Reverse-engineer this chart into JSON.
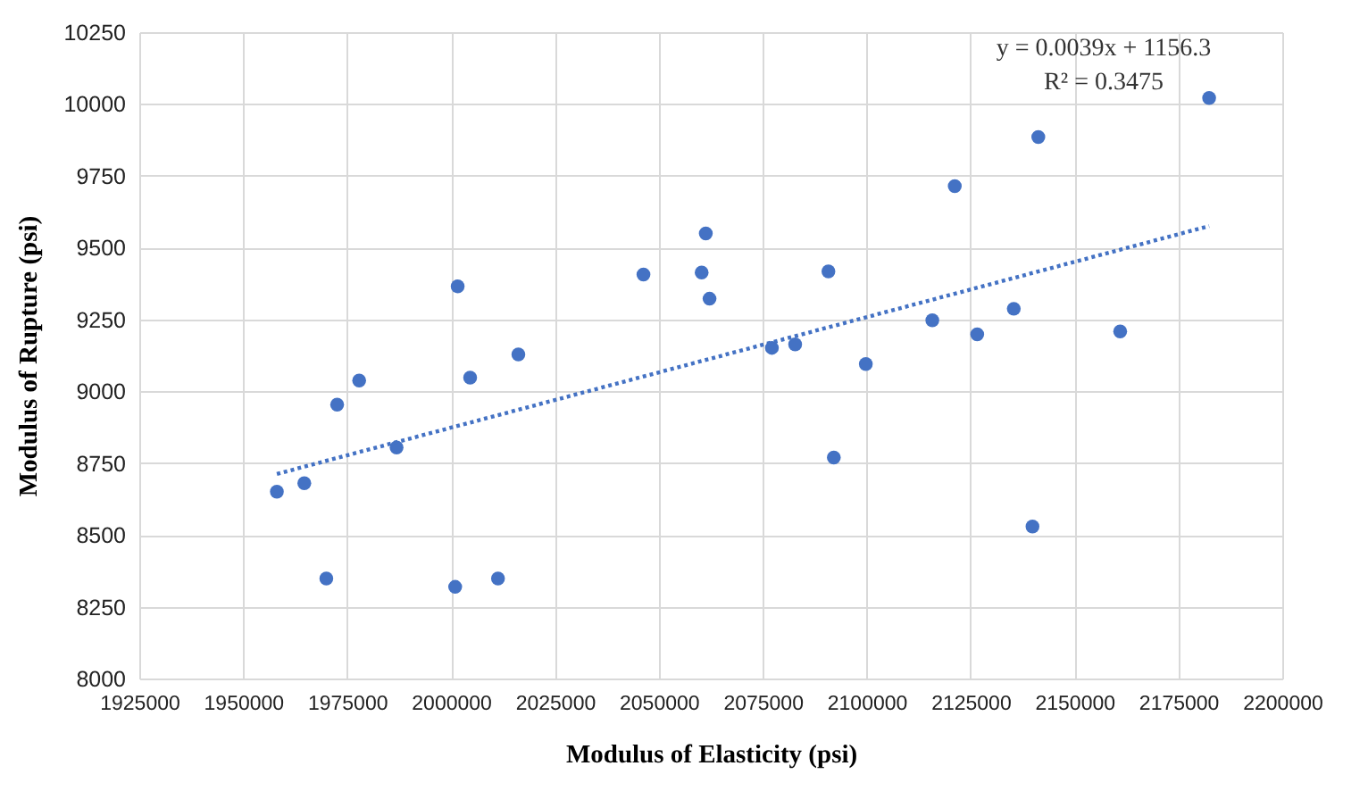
{
  "chart_data": {
    "type": "scatter",
    "xlabel": "Modulus of Elasticity (psi)",
    "ylabel": "Modulus of Rupture (psi)",
    "xlim": [
      1925000,
      2200000
    ],
    "xticks": [
      1925000,
      1950000,
      1975000,
      2000000,
      2025000,
      2050000,
      2075000,
      2100000,
      2125000,
      2150000,
      2175000,
      2200000
    ],
    "ylim": [
      8000,
      10250
    ],
    "yticks": [
      8000,
      8250,
      8500,
      8750,
      9000,
      9250,
      9500,
      9750,
      10000,
      10250
    ],
    "grid": true,
    "marker": "circle",
    "annotations": [
      "y = 0.0039x + 1156.3",
      "R² = 0.3475"
    ],
    "series": [
      {
        "color": "#4472c4",
        "x": [
          1958100,
          1964700,
          1970000,
          1972600,
          1977900,
          1986900,
          2001000,
          2004600,
          2011300,
          2016200,
          2001600,
          2046300,
          2060300,
          2061300,
          2062200,
          2077200,
          2082800,
          2090800,
          2099800,
          2092100,
          2115800,
          2121200,
          2126600,
          2135400,
          2141300,
          2139900,
          2161000,
          2182400
        ],
        "values": [
          8650,
          8680,
          8348,
          8953,
          9037,
          8804,
          8319,
          9047,
          8348,
          9128,
          9365,
          9406,
          9413,
          9549,
          9322,
          9151,
          9163,
          9417,
          9095,
          8769,
          9247,
          9714,
          9198,
          9287,
          9885,
          8529,
          9208,
          10021
        ]
      },
      {
        "type": "line",
        "line_style": "dotted",
        "marker": "none",
        "color": "#4472c4",
        "x": [
          1958100,
          2182400
        ],
        "values": [
          8712,
          9575
        ]
      }
    ]
  }
}
